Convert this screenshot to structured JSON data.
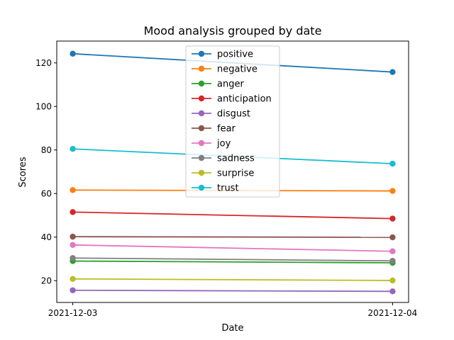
{
  "chart_data": {
    "type": "line",
    "title": "Mood analysis grouped by date",
    "xlabel": "Date",
    "ylabel": "Scores",
    "categories": [
      "2021-12-03",
      "2021-12-04"
    ],
    "ylim": [
      10,
      130
    ],
    "yticks": [
      20,
      40,
      60,
      80,
      100,
      120
    ],
    "grid": false,
    "legend": "top-center",
    "series": [
      {
        "name": "positive",
        "color": "#1f77b4",
        "values": [
          124.2,
          115.8
        ]
      },
      {
        "name": "negative",
        "color": "#ff7f0e",
        "values": [
          61.6,
          61.2
        ]
      },
      {
        "name": "anger",
        "color": "#2ca02c",
        "values": [
          29.0,
          28.2
        ]
      },
      {
        "name": "anticipation",
        "color": "#d62728",
        "values": [
          51.5,
          48.5
        ]
      },
      {
        "name": "disgust",
        "color": "#9467bd",
        "values": [
          15.6,
          15.1
        ]
      },
      {
        "name": "fear",
        "color": "#8c564b",
        "values": [
          40.2,
          39.9
        ]
      },
      {
        "name": "joy",
        "color": "#e377c2",
        "values": [
          36.4,
          33.5
        ]
      },
      {
        "name": "sadness",
        "color": "#7f7f7f",
        "values": [
          30.4,
          29.1
        ]
      },
      {
        "name": "surprise",
        "color": "#bcbd22",
        "values": [
          20.8,
          20.1
        ]
      },
      {
        "name": "trust",
        "color": "#17becf",
        "values": [
          80.5,
          73.7
        ]
      }
    ]
  }
}
